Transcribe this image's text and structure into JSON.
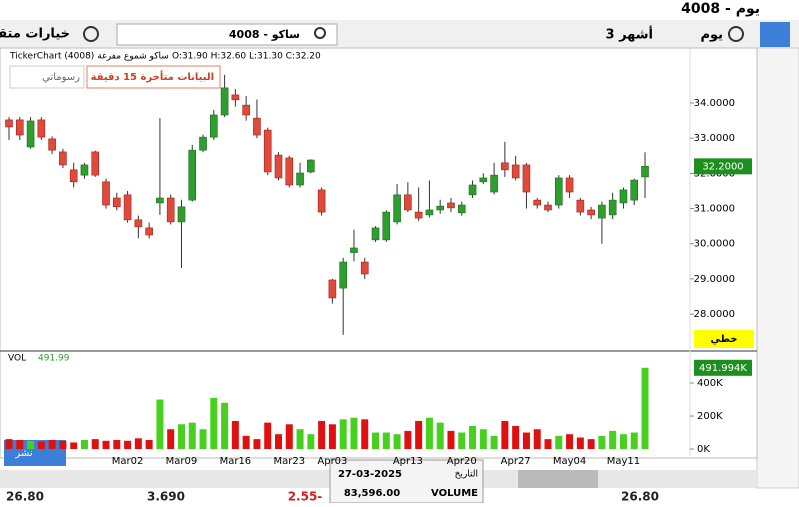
{
  "header": {
    "symbol_title": "4008 - يوم",
    "advanced": "خيارات متقدمة",
    "search": "4008 - ساكو",
    "period": "يوم",
    "range": "3 أشهر"
  },
  "chart_data": {
    "type": "candlestick",
    "title": "TickerChart (4008) ساكو شموع مفرغة",
    "ohlc_text": "O:31.90 H:32.60 L:31.30 C:32.20",
    "notice": "البيانات متأخرة 15 دقيقة",
    "my_drawings": "رسوماتي",
    "line_label": "خطي",
    "price_marker": "32.2000",
    "categories": [
      null,
      null,
      null,
      null,
      null,
      null,
      null,
      null,
      null,
      null,
      null,
      "Mar02",
      null,
      null,
      null,
      null,
      "Mar09",
      null,
      null,
      null,
      null,
      "Mar16",
      null,
      null,
      null,
      null,
      "Mar23",
      null,
      null,
      null,
      "Apr03",
      null,
      null,
      null,
      null,
      null,
      null,
      "Apr13",
      null,
      null,
      null,
      null,
      "Apr20",
      null,
      null,
      null,
      null,
      "Apr27",
      null,
      null,
      null,
      null,
      "May04",
      null,
      null,
      null,
      null,
      "May11",
      null,
      null
    ],
    "open": [
      33.52,
      33.52,
      32.75,
      33.52,
      32.98,
      32.61,
      32.1,
      31.95,
      32.61,
      31.76,
      31.3,
      31.39,
      30.68,
      30.45,
      31.16,
      31.3,
      30.62,
      31.24,
      32.66,
      33.03,
      33.66,
      34.23,
      33.94,
      33.57,
      33.23,
      32.52,
      32.44,
      31.67,
      32.04,
      31.53,
      28.97,
      28.74,
      29.75,
      29.48,
      30.11,
      30.11,
      30.62,
      31.39,
      30.9,
      30.82,
      30.96,
      31.16,
      30.88,
      31.39,
      31.76,
      31.47,
      32.3,
      32.24,
      32.24,
      31.24,
      31.1,
      31.1,
      31.87,
      31.24,
      30.96,
      30.73,
      30.82,
      31.16,
      31.24,
      31.9
    ],
    "high": [
      33.6,
      33.6,
      33.6,
      33.6,
      33.05,
      32.7,
      32.3,
      32.3,
      32.65,
      31.85,
      31.45,
      31.5,
      30.8,
      30.6,
      33.57,
      31.4,
      31.25,
      32.81,
      33.1,
      33.8,
      34.8,
      34.4,
      34.2,
      34.1,
      33.3,
      32.6,
      32.5,
      32.3,
      32.4,
      31.6,
      29.0,
      29.6,
      30.4,
      29.6,
      30.5,
      30.95,
      31.7,
      31.75,
      31.6,
      31.8,
      31.25,
      31.3,
      31.2,
      31.8,
      32.0,
      32.3,
      32.9,
      32.5,
      32.3,
      31.3,
      31.2,
      31.95,
      31.95,
      31.3,
      31.05,
      31.2,
      31.45,
      31.6,
      31.85,
      32.6
    ],
    "low": [
      32.95,
      32.95,
      32.7,
      32.95,
      32.55,
      32.15,
      31.6,
      31.85,
      31.9,
      31.0,
      30.95,
      30.6,
      30.16,
      30.15,
      30.82,
      30.55,
      29.31,
      31.2,
      32.6,
      32.95,
      33.6,
      33.9,
      33.5,
      33.0,
      31.95,
      31.8,
      31.6,
      31.6,
      32.0,
      30.8,
      28.3,
      27.41,
      29.5,
      29.0,
      30.05,
      30.05,
      30.55,
      30.9,
      30.65,
      30.75,
      30.85,
      30.9,
      30.8,
      31.3,
      31.7,
      31.4,
      31.9,
      31.8,
      31.0,
      31.0,
      30.9,
      31.0,
      31.3,
      30.8,
      30.7,
      30.0,
      30.7,
      31.0,
      31.1,
      31.3
    ],
    "close": [
      33.32,
      33.09,
      33.49,
      33.03,
      32.66,
      32.24,
      31.76,
      32.24,
      31.95,
      31.1,
      31.05,
      30.68,
      30.48,
      30.25,
      31.3,
      30.62,
      31.05,
      32.66,
      33.03,
      33.66,
      34.43,
      34.09,
      33.66,
      33.09,
      32.04,
      31.87,
      31.67,
      32.01,
      32.38,
      30.9,
      28.46,
      29.48,
      29.88,
      29.14,
      30.45,
      30.9,
      31.39,
      30.96,
      30.73,
      30.96,
      31.07,
      31.02,
      31.1,
      31.67,
      31.87,
      31.95,
      32.1,
      31.87,
      31.47,
      31.1,
      30.96,
      31.87,
      31.47,
      30.9,
      30.82,
      31.1,
      31.24,
      31.53,
      31.81,
      32.2
    ],
    "up_color": "#2e9e2e",
    "down_color": "#e04a3a",
    "ylim": [
      26.98,
      35.45
    ],
    "yticks": [
      {
        "value": 28,
        "label": "28.0000"
      },
      {
        "value": 29,
        "label": "29.0000"
      },
      {
        "value": 30,
        "label": "30.0000"
      },
      {
        "value": 31,
        "label": "31.0000"
      },
      {
        "value": 32,
        "label": "32.0000"
      },
      {
        "value": 33,
        "label": "33.0000"
      },
      {
        "value": 34,
        "label": "34.0000"
      }
    ],
    "volume_title": "VOL",
    "volume_legend": "491.99",
    "volume_marker": "491.994K",
    "volume": [
      60000,
      55000,
      50000,
      45000,
      55000,
      50000,
      40000,
      55000,
      60000,
      50000,
      55000,
      50000,
      65000,
      55000,
      300000,
      120000,
      150000,
      160000,
      120000,
      310000,
      280000,
      170000,
      80000,
      60000,
      160000,
      90000,
      150000,
      120000,
      90000,
      170000,
      150000,
      180000,
      190000,
      180000,
      100000,
      100000,
      90000,
      110000,
      170000,
      190000,
      160000,
      110000,
      100000,
      140000,
      120000,
      80000,
      170000,
      140000,
      100000,
      120000,
      60000,
      80000,
      90000,
      70000,
      60000,
      80000,
      110000,
      90000,
      100000,
      491994
    ],
    "volume_up_color": "#47d01e",
    "volume_down_color": "#e01010",
    "vlim": [
      -36000,
      509000
    ],
    "vticks": [
      {
        "value": 0,
        "label": "0K"
      },
      {
        "value": 200000,
        "label": "200K"
      },
      {
        "value": 400000,
        "label": "400K"
      }
    ]
  },
  "tooltip": {
    "date": "27-03-2025",
    "date_label": "التاريخ",
    "value": "83,596.00",
    "value_label": "VOLUME"
  },
  "publish": "نشر",
  "footer": [
    "26.80",
    "3.690",
    "2.55-",
    "26.80"
  ]
}
